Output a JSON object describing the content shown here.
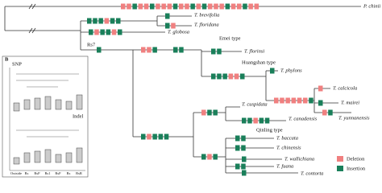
{
  "panel_label": "B",
  "inset": {
    "top_axis": "SNP",
    "bottom_axis": "Indel",
    "categories": [
      "Outside",
      "Rs",
      "RsF",
      "Rs1",
      "RsF",
      "Rs",
      "RsR"
    ]
  },
  "branch_label": "Rs7",
  "types": [
    "Emei type",
    "Huangshan type",
    "Qinling type"
  ],
  "taxa": [
    "P. chinii",
    "T. brevifolia",
    "T. floridana",
    "T. globosa",
    "T. florinsi",
    "T. phylons",
    "T. calcicola",
    "T. mairei",
    "T. yunnanensis",
    "T. cuspidata",
    "T. canadensis",
    "T. baccata",
    "T. chinensis",
    "T. wallichiana",
    "T. fuana",
    "T. contorta"
  ],
  "legend": [
    "Deletion",
    "Insertion"
  ]
}
